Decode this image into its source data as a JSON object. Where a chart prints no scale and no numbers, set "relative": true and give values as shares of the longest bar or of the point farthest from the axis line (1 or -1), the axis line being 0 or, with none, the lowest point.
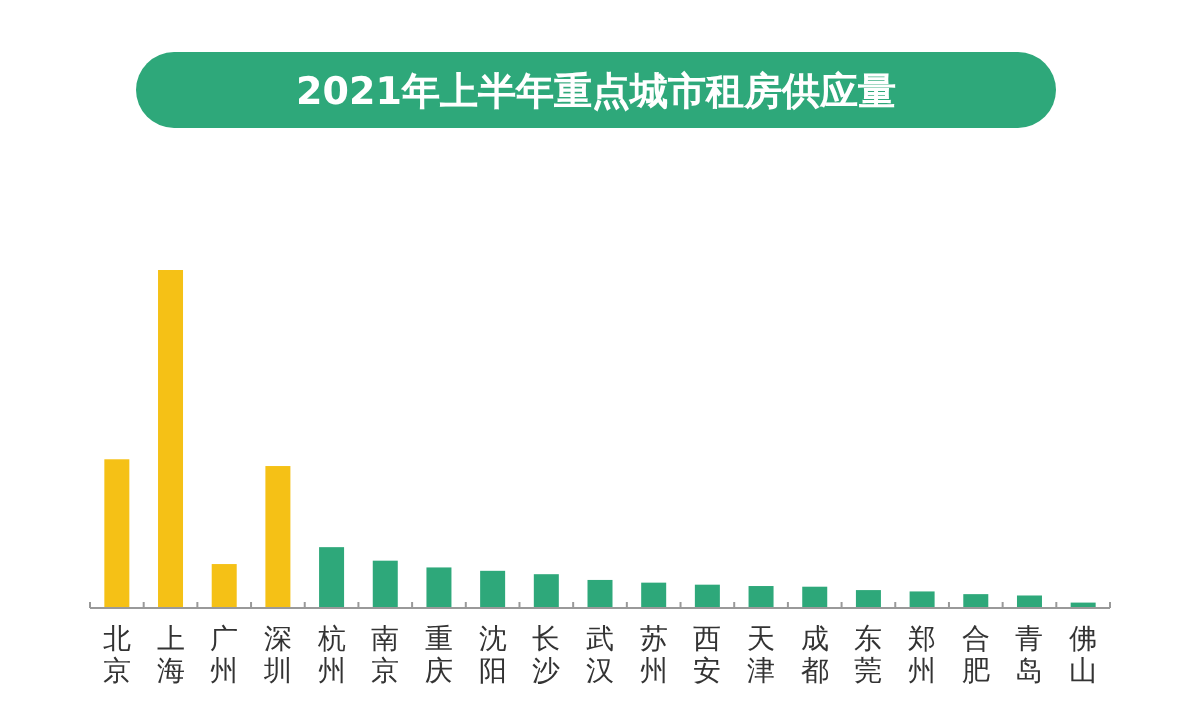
{
  "chart_data": {
    "type": "bar",
    "relative": true,
    "title": "2021年上半年重点城市租房供应量",
    "categories": [
      "北京",
      "上海",
      "广州",
      "深圳",
      "杭州",
      "南京",
      "重庆",
      "沈阳",
      "长沙",
      "武汉",
      "苏州",
      "西安",
      "天津",
      "成都",
      "东莞",
      "郑州",
      "合肥",
      "青岛",
      "佛山"
    ],
    "values": [
      0.44,
      1,
      0.13,
      0.42,
      0.18,
      0.14,
      0.12,
      0.11,
      0.1,
      0.083,
      0.075,
      0.069,
      0.065,
      0.063,
      0.053,
      0.049,
      0.041,
      0.037,
      0.016
    ],
    "colors": [
      "#f5c116",
      "#f5c116",
      "#f5c116",
      "#f5c116",
      "#2ea87a",
      "#2ea87a",
      "#2ea87a",
      "#2ea87a",
      "#2ea87a",
      "#2ea87a",
      "#2ea87a",
      "#2ea87a",
      "#2ea87a",
      "#2ea87a",
      "#2ea87a",
      "#2ea87a",
      "#2ea87a",
      "#2ea87a",
      "#2ea87a"
    ]
  }
}
